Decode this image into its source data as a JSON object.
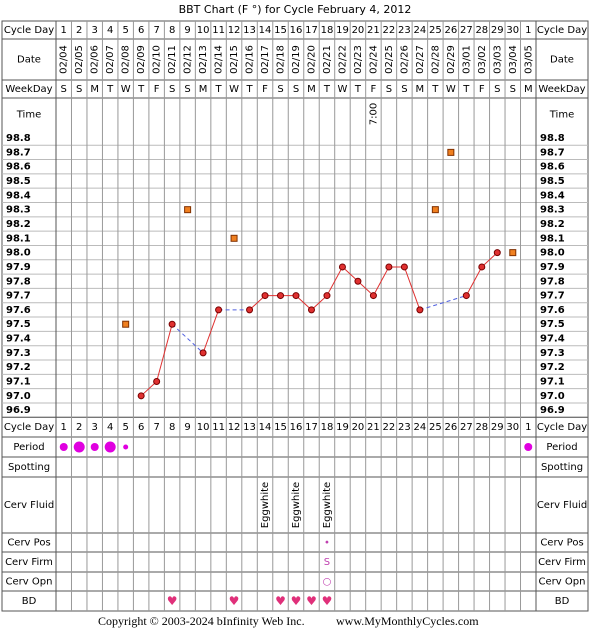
{
  "chart_data": {
    "type": "line",
    "title": "BBT Chart (F °) for Cycle February 4, 2012",
    "row_labels": {
      "cycle_day": "Cycle Day",
      "date": "Date",
      "weekday": "WeekDay",
      "time": "Time",
      "period": "Period",
      "spotting": "Spotting",
      "cerv_fluid": "Cerv Fluid",
      "cerv_pos": "Cerv Pos",
      "cerv_firm": "Cerv Firm",
      "cerv_opn": "Cerv Opn",
      "bd": "BD"
    },
    "categories": [
      1,
      2,
      3,
      4,
      5,
      6,
      7,
      8,
      9,
      10,
      11,
      12,
      13,
      14,
      15,
      16,
      17,
      18,
      19,
      20,
      21,
      22,
      23,
      24,
      25,
      26,
      27,
      28,
      29,
      30,
      1
    ],
    "dates": [
      "02/04",
      "02/05",
      "02/06",
      "02/07",
      "02/08",
      "02/09",
      "02/10",
      "02/11",
      "02/12",
      "02/13",
      "02/14",
      "02/15",
      "02/16",
      "02/17",
      "02/18",
      "02/19",
      "02/20",
      "02/21",
      "02/22",
      "02/23",
      "02/24",
      "02/25",
      "02/26",
      "02/27",
      "02/28",
      "02/29",
      "03/01",
      "03/02",
      "03/03",
      "03/04",
      "03/05"
    ],
    "weekdays": [
      "S",
      "S",
      "M",
      "T",
      "W",
      "T",
      "F",
      "S",
      "S",
      "M",
      "T",
      "W",
      "T",
      "F",
      "S",
      "S",
      "M",
      "T",
      "W",
      "T",
      "F",
      "S",
      "S",
      "M",
      "T",
      "W",
      "T",
      "F",
      "S",
      "S",
      "M"
    ],
    "times": [
      null,
      null,
      null,
      null,
      null,
      null,
      null,
      null,
      null,
      null,
      null,
      null,
      null,
      null,
      null,
      null,
      null,
      null,
      null,
      null,
      "7:00",
      null,
      null,
      null,
      null,
      null,
      null,
      null,
      null,
      null,
      null
    ],
    "temps": {
      "color": "#e03030",
      "values": [
        null,
        null,
        null,
        null,
        null,
        97.0,
        97.1,
        97.5,
        null,
        97.3,
        97.6,
        null,
        97.6,
        97.7,
        97.7,
        97.7,
        97.6,
        97.7,
        97.9,
        97.8,
        97.7,
        97.9,
        97.9,
        97.6,
        null,
        null,
        97.7,
        97.9,
        98.0,
        null,
        null
      ]
    },
    "excluded_temps": {
      "color": "#f08020",
      "values": [
        null,
        null,
        null,
        null,
        97.5,
        null,
        null,
        null,
        98.3,
        null,
        null,
        98.1,
        null,
        null,
        null,
        null,
        null,
        null,
        null,
        null,
        null,
        null,
        null,
        null,
        98.3,
        98.7,
        null,
        null,
        null,
        98.0,
        null
      ]
    },
    "ylim": [
      96.85,
      98.85
    ],
    "yticks": [
      98.8,
      98.7,
      98.6,
      98.5,
      98.4,
      98.3,
      98.2,
      98.1,
      {
        "value": 98,
        "label": "98.0"
      },
      97.9,
      97.8,
      97.7,
      97.6,
      97.5,
      97.4,
      97.3,
      97.2,
      97.1,
      {
        "value": 97,
        "label": "97.0"
      },
      96.9
    ],
    "period": {
      "color": "#e000e0",
      "values": [
        2,
        3,
        2,
        3,
        1,
        null,
        null,
        null,
        null,
        null,
        null,
        null,
        null,
        null,
        null,
        null,
        null,
        null,
        null,
        null,
        null,
        null,
        null,
        null,
        null,
        null,
        null,
        null,
        null,
        null,
        2
      ]
    },
    "cerv_fluid": [
      null,
      null,
      null,
      null,
      null,
      null,
      null,
      null,
      null,
      null,
      null,
      null,
      null,
      "Eggwhite",
      null,
      "Eggwhite",
      null,
      "Eggwhite",
      null,
      null,
      null,
      null,
      null,
      null,
      null,
      null,
      null,
      null,
      null,
      null,
      null
    ],
    "cerv_pos": [
      null,
      null,
      null,
      null,
      null,
      null,
      null,
      null,
      null,
      null,
      null,
      null,
      null,
      null,
      null,
      null,
      null,
      "•",
      null,
      null,
      null,
      null,
      null,
      null,
      null,
      null,
      null,
      null,
      null,
      null,
      null
    ],
    "cerv_firm": [
      null,
      null,
      null,
      null,
      null,
      null,
      null,
      null,
      null,
      null,
      null,
      null,
      null,
      null,
      null,
      null,
      null,
      "S",
      null,
      null,
      null,
      null,
      null,
      null,
      null,
      null,
      null,
      null,
      null,
      null,
      null
    ],
    "cerv_opn": [
      null,
      null,
      null,
      null,
      null,
      null,
      null,
      null,
      null,
      null,
      null,
      null,
      null,
      null,
      null,
      null,
      null,
      "○",
      null,
      null,
      null,
      null,
      null,
      null,
      null,
      null,
      null,
      null,
      null,
      null,
      null
    ],
    "bd": [
      null,
      null,
      null,
      null,
      null,
      null,
      null,
      "♥",
      null,
      null,
      null,
      "♥",
      null,
      null,
      "♥",
      "♥",
      "♥",
      "♥",
      null,
      null,
      null,
      null,
      null,
      null,
      null,
      null,
      null,
      null,
      null,
      null,
      null
    ]
  },
  "footer": {
    "copyright": "Copyright © 2003-2024 bInfinity Web Inc.",
    "website": "www.MyMonthlyCycles.com"
  }
}
